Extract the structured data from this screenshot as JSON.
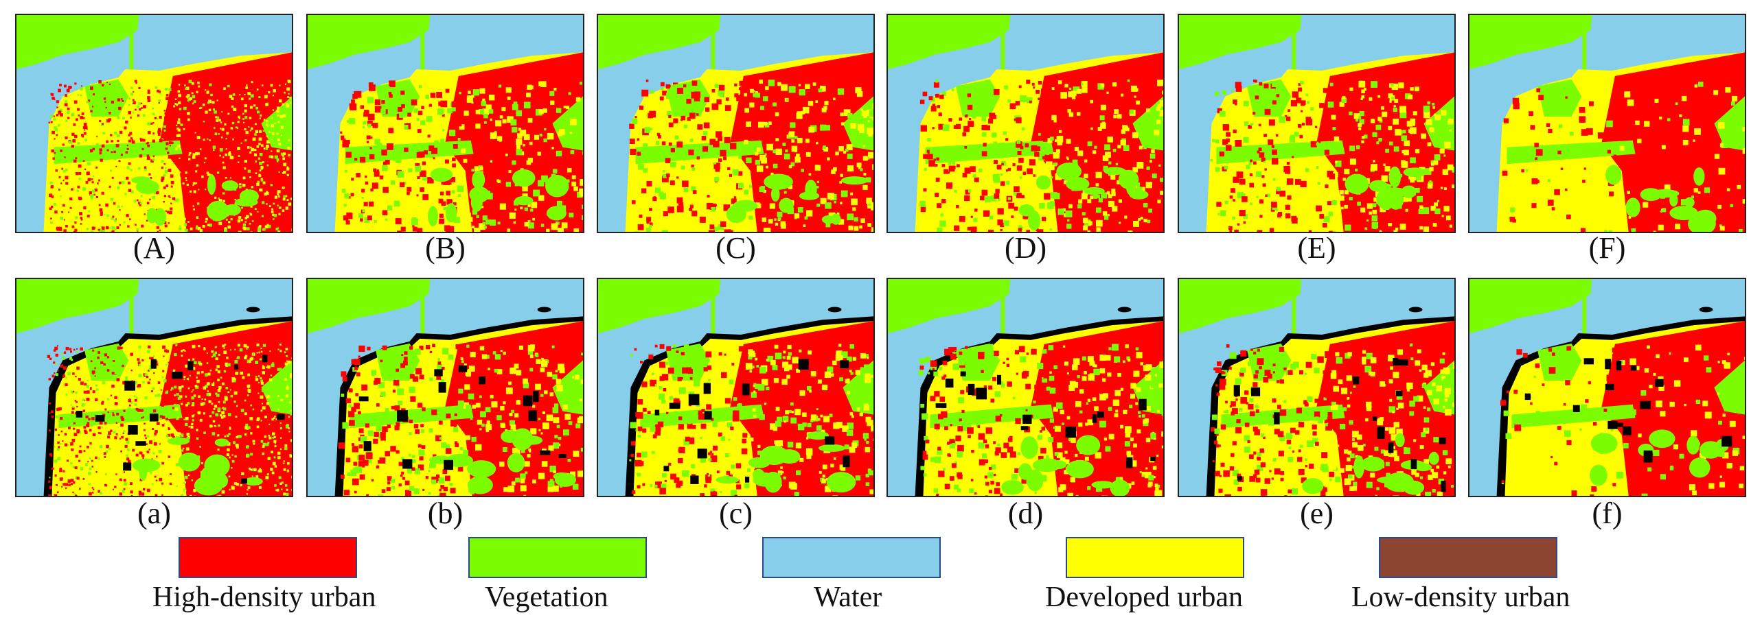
{
  "colors": {
    "high_density_urban": "#FF0000",
    "vegetation": "#7CFC00",
    "water": "#87CEEB",
    "developed_urban": "#FFFF00",
    "low_density_urban": "#8B4530",
    "unlabeled": "#000000"
  },
  "top_row": [
    {
      "caption": "(A)"
    },
    {
      "caption": "(B)"
    },
    {
      "caption": "(C)"
    },
    {
      "caption": "(D)"
    },
    {
      "caption": "(E)"
    },
    {
      "caption": "(F)"
    }
  ],
  "bottom_row": [
    {
      "caption": "(a)"
    },
    {
      "caption": "(b)"
    },
    {
      "caption": "(c)"
    },
    {
      "caption": "(d)"
    },
    {
      "caption": "(e)"
    },
    {
      "caption": "(f)"
    }
  ],
  "legend": [
    {
      "label": "High-density urban",
      "color": "#FF0000"
    },
    {
      "label": "Vegetation",
      "color": "#7CFC00"
    },
    {
      "label": "Water",
      "color": "#87CEEB"
    },
    {
      "label": "Developed urban",
      "color": "#FFFF00"
    },
    {
      "label": "Low-density urban",
      "color": "#8B4530"
    }
  ]
}
